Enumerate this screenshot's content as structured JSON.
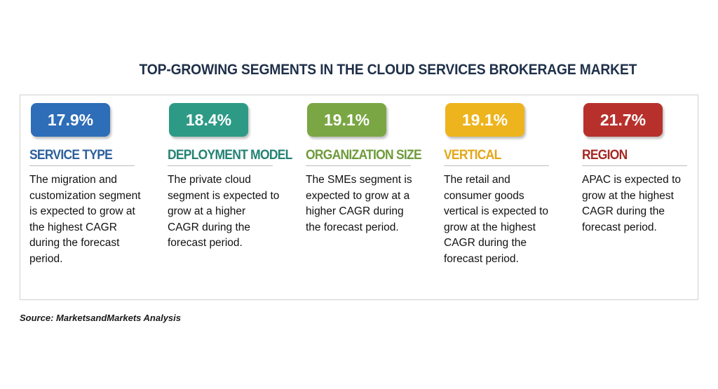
{
  "title": "TOP-GROWING SEGMENTS IN THE CLOUD SERVICES BROKERAGE MARKET",
  "segments": [
    {
      "value": "17.9%",
      "heading": "SERVICE TYPE",
      "description": "The migration and customization segment is expected to grow at the highest CAGR during the forecast period.",
      "badge_color": "#2e6db8",
      "heading_color": "#2c5f9e"
    },
    {
      "value": "18.4%",
      "heading": "DEPLOYMENT MODEL",
      "description": "The private cloud segment is expected to grow at a higher CAGR during the forecast period.",
      "badge_color": "#2d9a86",
      "heading_color": "#238273"
    },
    {
      "value": "19.1%",
      "heading": "ORGANIZATION SIZE",
      "description": "The SMEs segment is expected to grow at a higher CAGR during the forecast period.",
      "badge_color": "#7ba644",
      "heading_color": "#6e9a3b"
    },
    {
      "value": "19.1%",
      "heading": "VERTICAL",
      "description": "The retail and consumer goods vertical is expected to grow at the highest CAGR during the forecast period.",
      "badge_color": "#edb41d",
      "heading_color": "#e3a617"
    },
    {
      "value": "21.7%",
      "heading": "REGION",
      "description": "APAC is expected to grow at the highest CAGR during the forecast period.",
      "badge_color": "#b8302c",
      "heading_color": "#a52824"
    }
  ],
  "source": "Source: MarketsandMarkets Analysis"
}
